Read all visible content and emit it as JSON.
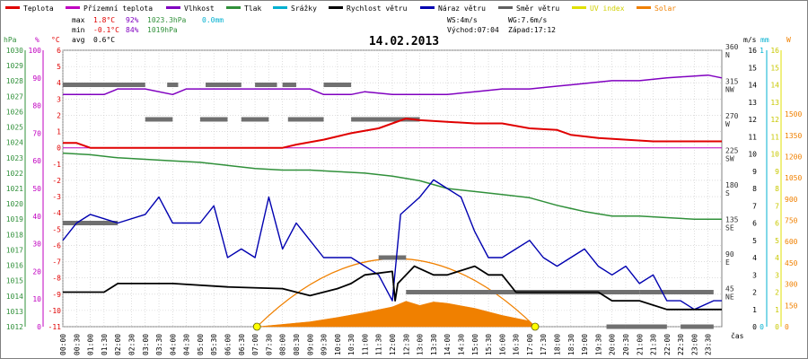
{
  "chart_data": {
    "type": "line",
    "title": "14.02.2013",
    "legend": [
      {
        "key": "temp",
        "label": "Teplota",
        "color": "#e00000"
      },
      {
        "key": "feels",
        "label": "Přízemní teplota",
        "color": "#c000c0"
      },
      {
        "key": "humidity",
        "label": "Vlhkost",
        "color": "#8000c0"
      },
      {
        "key": "pressure",
        "label": "Tlak",
        "color": "#30903a"
      },
      {
        "key": "rain",
        "label": "Srážky",
        "color": "#00b0d0"
      },
      {
        "key": "wind",
        "label": "Rychlost větru",
        "color": "#000000"
      },
      {
        "key": "gust",
        "label": "Náraz větru",
        "color": "#0000b0"
      },
      {
        "key": "direction",
        "label": "Směr větru",
        "color": "#606060"
      },
      {
        "key": "uv",
        "label": "UV index",
        "color": "#e0e000"
      },
      {
        "key": "solar",
        "label": "Solar",
        "color": "#f08000"
      }
    ],
    "stats": {
      "max_label": "max",
      "max_temp": "1.8°C",
      "max_hum": "92%",
      "max_press": "1023.3hPa",
      "rain_total": "0.0mm",
      "min_label": "min",
      "min_temp": "-0.1°C",
      "min_hum": "84%",
      "min_press": "1019hPa",
      "avg_label": "avg",
      "avg_temp": "0.6°C"
    },
    "info": {
      "ws": "WS:4m/s",
      "wg": "WG:7.6m/s",
      "sunrise": "Východ:07:04",
      "sunset": "Západ:17:12"
    },
    "axis_units": {
      "hpa": "hPa",
      "pct": "%",
      "degc": "°C",
      "ms": "m/s",
      "mm": "mm",
      "w": "W",
      "time": "čas"
    },
    "axes": {
      "hpa": {
        "min": 1012,
        "max": 1030,
        "ticks": [
          1012,
          1013,
          1014,
          1015,
          1016,
          1017,
          1018,
          1019,
          1020,
          1021,
          1022,
          1023,
          1024,
          1025,
          1026,
          1027,
          1028,
          1029,
          1030
        ],
        "color": "#30903a"
      },
      "pct": {
        "min": 0,
        "max": 100,
        "ticks": [
          0,
          10,
          20,
          30,
          40,
          50,
          60,
          70,
          80,
          90,
          100
        ],
        "color": "#c000c0"
      },
      "degc": {
        "min": -11,
        "max": 6,
        "ticks": [
          -11,
          -10,
          -9,
          -8,
          -7,
          -6,
          -5,
          -4,
          -3,
          -2,
          -1,
          0,
          1,
          2,
          3,
          4,
          5,
          6
        ],
        "color": "#e00000"
      },
      "deg": {
        "min": 0,
        "max": 360,
        "ticks": [
          [
            360,
            "N"
          ],
          [
            315,
            "NW"
          ],
          [
            270,
            "W"
          ],
          [
            225,
            "SW"
          ],
          [
            180,
            "S"
          ],
          [
            135,
            "SE"
          ],
          [
            90,
            "E"
          ],
          [
            45,
            "NE"
          ]
        ],
        "color": "#303030"
      },
      "ms": {
        "min": 0,
        "max": 16,
        "ticks": [
          0,
          1,
          2,
          3,
          4,
          5,
          6,
          7,
          8,
          9,
          10,
          11,
          12,
          13,
          14,
          15,
          16
        ],
        "color": "#000000"
      },
      "mm": {
        "min": 0,
        "max": 1,
        "ticks": [
          0,
          1
        ],
        "color": "#00b0d0"
      },
      "uv": {
        "min": 0,
        "max": 16,
        "ticks": [
          0,
          1,
          2,
          3,
          4,
          5,
          6,
          7,
          8,
          9,
          10,
          11,
          12,
          13,
          14,
          15,
          16
        ],
        "color": "#c8c800"
      },
      "w": {
        "min": 0,
        "max": 1950,
        "ticks": [
          0,
          150,
          300,
          450,
          600,
          750,
          900,
          1050,
          1200,
          1350,
          1500
        ],
        "color": "#f08000"
      }
    },
    "x_ticks": [
      "00:00",
      "00:30",
      "01:00",
      "01:30",
      "02:00",
      "02:30",
      "03:00",
      "03:30",
      "04:00",
      "04:30",
      "05:00",
      "05:30",
      "06:00",
      "06:30",
      "07:00",
      "07:30",
      "08:00",
      "08:30",
      "09:00",
      "09:30",
      "10:00",
      "10:30",
      "11:00",
      "11:30",
      "12:00",
      "12:30",
      "13:00",
      "13:30",
      "14:00",
      "14:30",
      "15:00",
      "15:30",
      "16:00",
      "16:30",
      "17:00",
      "17:30",
      "18:00",
      "18:30",
      "19:00",
      "19:30",
      "20:00",
      "20:30",
      "21:00",
      "21:30",
      "22:00",
      "22:30",
      "23:00",
      "23:30"
    ],
    "series": {
      "temp": [
        [
          0,
          0.3
        ],
        [
          0.5,
          0.3
        ],
        [
          1,
          0.0
        ],
        [
          6,
          0.0
        ],
        [
          8,
          0.0
        ],
        [
          8.5,
          0.2
        ],
        [
          9.5,
          0.5
        ],
        [
          10.5,
          0.9
        ],
        [
          11.5,
          1.2
        ],
        [
          12,
          1.5
        ],
        [
          12.5,
          1.8
        ],
        [
          13,
          1.7
        ],
        [
          14,
          1.6
        ],
        [
          15,
          1.5
        ],
        [
          16,
          1.5
        ],
        [
          17,
          1.2
        ],
        [
          18,
          1.1
        ],
        [
          18.5,
          0.8
        ],
        [
          19.5,
          0.6
        ],
        [
          20.5,
          0.5
        ],
        [
          21.5,
          0.4
        ],
        [
          22.5,
          0.4
        ],
        [
          24,
          0.4
        ]
      ],
      "humidity": [
        [
          0,
          84
        ],
        [
          1.5,
          84
        ],
        [
          2,
          86
        ],
        [
          3,
          86
        ],
        [
          4,
          84
        ],
        [
          4.5,
          86
        ],
        [
          6,
          86
        ],
        [
          7,
          86
        ],
        [
          8,
          86
        ],
        [
          9,
          86
        ],
        [
          9.5,
          84
        ],
        [
          10.5,
          84
        ],
        [
          11,
          85
        ],
        [
          12,
          84
        ],
        [
          13,
          84
        ],
        [
          14,
          84
        ],
        [
          15,
          85
        ],
        [
          16,
          86
        ],
        [
          17,
          86
        ],
        [
          18,
          87
        ],
        [
          19,
          88
        ],
        [
          20,
          89
        ],
        [
          21,
          89
        ],
        [
          22,
          90
        ],
        [
          23.5,
          91
        ],
        [
          24,
          90
        ]
      ],
      "pressure": [
        [
          0,
          1023.3
        ],
        [
          1,
          1023.2
        ],
        [
          2,
          1023.0
        ],
        [
          3,
          1022.9
        ],
        [
          4,
          1022.8
        ],
        [
          5,
          1022.7
        ],
        [
          6,
          1022.5
        ],
        [
          7,
          1022.3
        ],
        [
          8,
          1022.2
        ],
        [
          9,
          1022.2
        ],
        [
          10,
          1022.1
        ],
        [
          11,
          1022.0
        ],
        [
          12,
          1021.8
        ],
        [
          13,
          1021.5
        ],
        [
          14,
          1021.0
        ],
        [
          15,
          1020.8
        ],
        [
          16,
          1020.6
        ],
        [
          17,
          1020.4
        ],
        [
          18,
          1019.9
        ],
        [
          19,
          1019.5
        ],
        [
          20,
          1019.2
        ],
        [
          21,
          1019.2
        ],
        [
          22,
          1019.1
        ],
        [
          23,
          1019.0
        ],
        [
          24,
          1019.0
        ]
      ],
      "wind": [
        [
          0,
          2.0
        ],
        [
          1.5,
          2.0
        ],
        [
          2,
          2.5
        ],
        [
          4,
          2.5
        ],
        [
          6,
          2.3
        ],
        [
          8,
          2.2
        ],
        [
          9,
          1.8
        ],
        [
          9.5,
          2.0
        ],
        [
          10,
          2.2
        ],
        [
          10.5,
          2.5
        ],
        [
          11,
          3.0
        ],
        [
          12,
          3.2
        ],
        [
          12.1,
          1.5
        ],
        [
          12.2,
          2.5
        ],
        [
          12.8,
          3.5
        ],
        [
          13.5,
          3.0
        ],
        [
          14,
          3.0
        ],
        [
          15,
          3.5
        ],
        [
          15.5,
          3.0
        ],
        [
          16,
          3.0
        ],
        [
          16.5,
          2.0
        ],
        [
          17,
          2.0
        ],
        [
          18,
          2.0
        ],
        [
          19.5,
          2.0
        ],
        [
          20,
          1.5
        ],
        [
          21,
          1.5
        ],
        [
          22,
          1.0
        ],
        [
          24,
          1.0
        ]
      ],
      "gust": [
        [
          0,
          5
        ],
        [
          0.5,
          6
        ],
        [
          1,
          6.5
        ],
        [
          2,
          6.0
        ],
        [
          3,
          6.5
        ],
        [
          3.5,
          7.5
        ],
        [
          4,
          6.0
        ],
        [
          5,
          6.0
        ],
        [
          5.5,
          7.0
        ],
        [
          6,
          4.0
        ],
        [
          6.5,
          4.5
        ],
        [
          7,
          4.0
        ],
        [
          7.5,
          7.5
        ],
        [
          8,
          4.5
        ],
        [
          8.5,
          6.0
        ],
        [
          9,
          5.0
        ],
        [
          9.5,
          4.0
        ],
        [
          10,
          4.0
        ],
        [
          10.5,
          4.0
        ],
        [
          11,
          3.5
        ],
        [
          11.5,
          3.0
        ],
        [
          12,
          1.5
        ],
        [
          12.3,
          6.5
        ],
        [
          13,
          7.5
        ],
        [
          13.5,
          8.5
        ],
        [
          14,
          8.0
        ],
        [
          14.5,
          7.5
        ],
        [
          15,
          5.5
        ],
        [
          15.5,
          4.0
        ],
        [
          16,
          4.0
        ],
        [
          16.5,
          4.5
        ],
        [
          17,
          5.0
        ],
        [
          17.5,
          4.0
        ],
        [
          18,
          3.5
        ],
        [
          19,
          4.5
        ],
        [
          19.5,
          3.5
        ],
        [
          20,
          3.0
        ],
        [
          20.5,
          3.5
        ],
        [
          21,
          2.5
        ],
        [
          21.5,
          3.0
        ],
        [
          22,
          1.5
        ],
        [
          22.5,
          1.5
        ],
        [
          23,
          1.0
        ],
        [
          23.7,
          1.5
        ],
        [
          24,
          1.5
        ]
      ],
      "solar": [
        [
          7.1,
          0
        ],
        [
          9,
          35
        ],
        [
          10,
          65
        ],
        [
          11,
          100
        ],
        [
          12,
          140
        ],
        [
          12.5,
          180
        ],
        [
          13,
          150
        ],
        [
          13.5,
          175
        ],
        [
          14,
          165
        ],
        [
          15,
          130
        ],
        [
          16,
          80
        ],
        [
          17,
          40
        ],
        [
          17.2,
          0
        ]
      ],
      "sun_arc": [
        [
          7.07,
          0
        ],
        [
          12.13,
          480
        ],
        [
          17.2,
          0
        ]
      ],
      "direction_segments": [
        [
          0,
          2.0,
          135
        ],
        [
          3,
          4,
          270
        ],
        [
          5,
          6,
          270
        ],
        [
          6.5,
          7.5,
          270
        ],
        [
          8.2,
          9.5,
          270
        ],
        [
          9.5,
          10.5,
          315
        ],
        [
          10.5,
          13,
          270
        ],
        [
          0,
          3,
          315
        ],
        [
          3.8,
          4.2,
          315
        ],
        [
          5.2,
          6.5,
          315
        ],
        [
          7.0,
          7.8,
          315
        ],
        [
          8,
          8.5,
          315
        ],
        [
          9.5,
          9.8,
          315
        ],
        [
          11.5,
          12.5,
          90
        ],
        [
          12.5,
          15.5,
          45
        ],
        [
          15.5,
          16.5,
          45
        ],
        [
          16.5,
          21,
          45
        ],
        [
          21,
          23.7,
          45
        ],
        [
          22.5,
          23.7,
          0
        ],
        [
          19.8,
          20.5,
          0
        ],
        [
          20.5,
          22,
          0
        ]
      ]
    }
  }
}
